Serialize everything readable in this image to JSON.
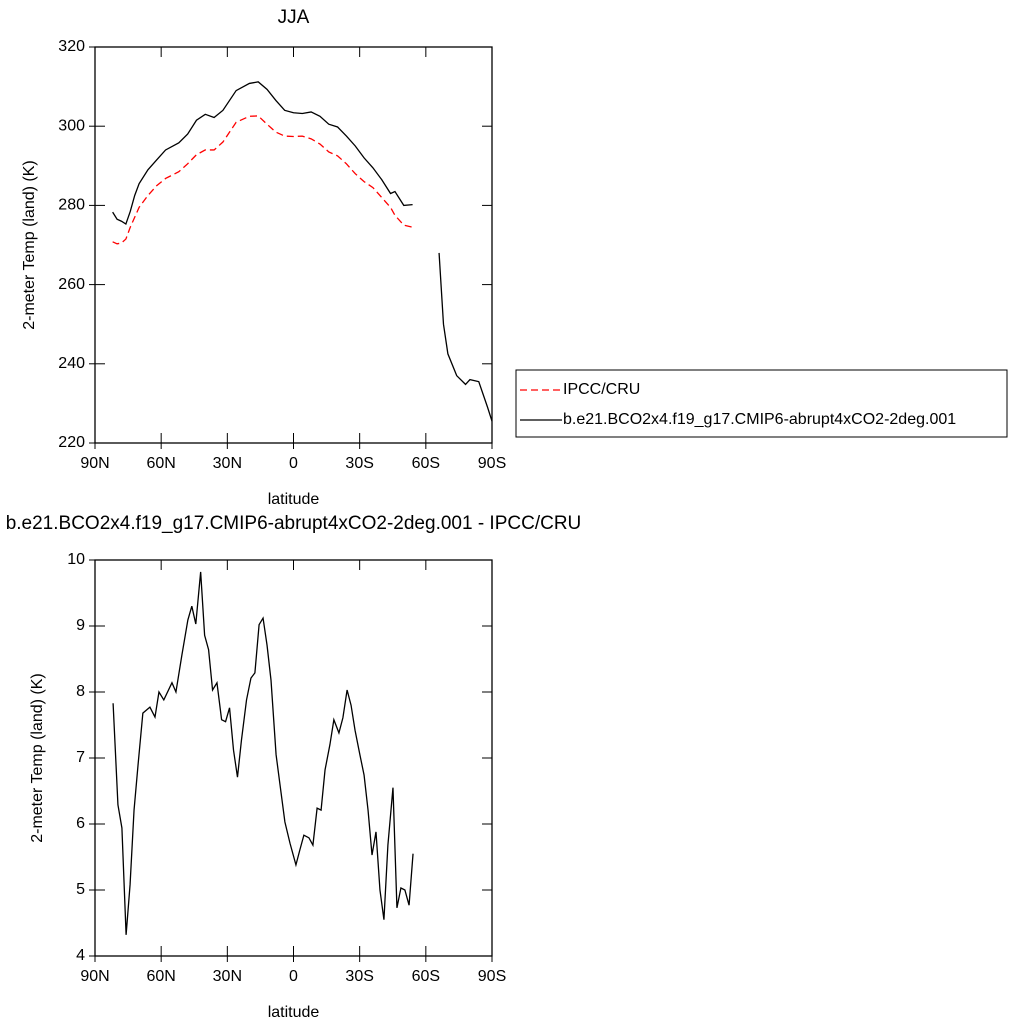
{
  "chart_data": [
    {
      "type": "line",
      "title": "JJA",
      "xlabel": "latitude",
      "ylabel": "2-meter Temp (land) (K)",
      "x": [
        82,
        80,
        78,
        76,
        74,
        72,
        70,
        66,
        62,
        58,
        52,
        48,
        44,
        40,
        36,
        32,
        26,
        20,
        16,
        12,
        8,
        4,
        0,
        -4,
        -8,
        -12,
        -16,
        -20,
        -24,
        -28,
        -32,
        -36,
        -40,
        -44,
        -46,
        -50,
        -54,
        -58,
        -66,
        -68,
        -70,
        -74,
        -78,
        -80,
        -84,
        -88,
        -90
      ],
      "series": [
        {
          "name": "IPCC/CRU",
          "color": "#ff0000",
          "line_style": "dashed",
          "values": [
            270.8,
            270.3,
            270.5,
            271.5,
            274.5,
            277,
            279.5,
            282.5,
            285,
            286.8,
            288.5,
            290.5,
            292.8,
            294,
            294,
            296,
            301,
            302.5,
            302.6,
            300.5,
            298.5,
            297.5,
            297.4,
            297.5,
            296.8,
            295.5,
            293.5,
            292.5,
            290.5,
            288,
            286,
            284.5,
            282,
            279.5,
            277.5,
            275,
            274.5,
            null,
            null,
            null,
            null,
            null,
            null,
            null,
            null,
            null,
            null
          ]
        },
        {
          "name": "b.e21.BCO2x4.f19_g17.CMIP6-abrupt4xCO2-2deg.001",
          "color": "#000000",
          "line_style": "solid",
          "values": [
            278.3,
            276.5,
            276,
            275.3,
            278.5,
            282.5,
            285.5,
            289,
            291.5,
            294,
            295.8,
            298,
            301.5,
            303,
            302.2,
            304,
            309,
            310.8,
            311.2,
            309.3,
            306.5,
            304,
            303.4,
            303.2,
            303.6,
            302.5,
            300.5,
            299.8,
            297.5,
            295,
            292,
            289.5,
            286.5,
            283,
            283.5,
            280,
            280.2,
            null,
            268,
            250,
            242.5,
            237,
            234.8,
            236,
            235.5,
            229,
            225.5
          ]
        }
      ],
      "xlim": [
        90,
        -90
      ],
      "xticks": [
        {
          "value": 90,
          "label": "90N"
        },
        {
          "value": 60,
          "label": "60N"
        },
        {
          "value": 30,
          "label": "30N"
        },
        0,
        {
          "value": -30,
          "label": "30S"
        },
        {
          "value": -60,
          "label": "60S"
        },
        {
          "value": -90,
          "label": "90S"
        }
      ],
      "ylim": [
        220,
        320
      ],
      "yticks": [
        220,
        240,
        260,
        280,
        300,
        320
      ],
      "legend": "right"
    },
    {
      "type": "line",
      "title": "b.e21.BCO2x4.f19_g17.CMIP6-abrupt4xCO2-2deg.001 - IPCC/CRU",
      "xlabel": "latitude",
      "ylabel": "2-meter Temp (land) (K)",
      "x": [
        81.8,
        79.6,
        77.8,
        75.9,
        74.1,
        72.3,
        70.5,
        68.3,
        65.1,
        62.8,
        61.0,
        58.8,
        55.1,
        53.3,
        50.6,
        47.9,
        46.1,
        44.3,
        42.1,
        40.3,
        38.5,
        36.7,
        34.7,
        32.6,
        30.8,
        29.0,
        27.2,
        25.4,
        23.6,
        21.3,
        19.3,
        17.5,
        15.6,
        13.8,
        12.0,
        10.2,
        7.9,
        6.1,
        3.9,
        1.6,
        -1.1,
        -2.9,
        -4.7,
        -7.0,
        -8.8,
        -10.7,
        -12.5,
        -14.3,
        -16.5,
        -18.3,
        -20.6,
        -22.4,
        -24.3,
        -26.1,
        -27.9,
        -30.1,
        -32.0,
        -33.8,
        -35.6,
        -37.4,
        -39.2,
        -41.0,
        -42.8,
        -45.1,
        -46.9,
        -48.7,
        -50.5,
        -52.4,
        -54.2
      ],
      "series": [
        {
          "color": "#000000",
          "line_style": "solid",
          "values": [
            7.83,
            6.29,
            5.94,
            4.32,
            5.08,
            6.21,
            6.89,
            7.68,
            7.77,
            7.62,
            8.0,
            7.88,
            8.14,
            8.0,
            8.56,
            9.09,
            9.3,
            9.03,
            9.82,
            8.86,
            8.64,
            8.03,
            8.14,
            7.58,
            7.55,
            7.76,
            7.12,
            6.71,
            7.27,
            7.88,
            8.21,
            8.29,
            9.02,
            9.12,
            8.71,
            8.18,
            7.05,
            6.59,
            6.03,
            5.71,
            5.38,
            5.61,
            5.83,
            5.79,
            5.68,
            6.24,
            6.21,
            6.82,
            7.2,
            7.58,
            7.38,
            7.61,
            8.03,
            7.8,
            7.42,
            7.05,
            6.74,
            6.21,
            5.53,
            5.88,
            5.0,
            4.55,
            5.68,
            6.55,
            4.73,
            5.03,
            5.0,
            4.77,
            5.55
          ]
        }
      ],
      "xlim": [
        90,
        -90
      ],
      "xticks": [
        {
          "value": 90,
          "label": "90N"
        },
        {
          "value": 60,
          "label": "60N"
        },
        {
          "value": 30,
          "label": "30N"
        },
        0,
        {
          "value": -30,
          "label": "30S"
        },
        {
          "value": -60,
          "label": "60S"
        },
        {
          "value": -90,
          "label": "90S"
        }
      ],
      "ylim": [
        4,
        10
      ],
      "yticks": [
        4,
        5,
        6,
        7,
        8,
        9,
        10
      ]
    }
  ]
}
